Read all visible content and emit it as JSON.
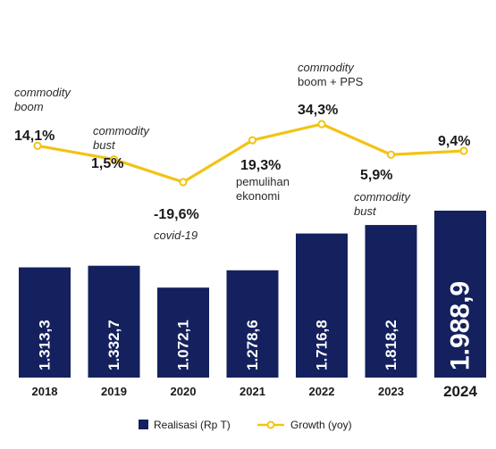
{
  "chart_data": {
    "type": "bar",
    "categories": [
      "2018",
      "2019",
      "2020",
      "2021",
      "2022",
      "2023",
      "2024"
    ],
    "series": [
      {
        "name": "Realisasi (Rp T)",
        "type": "bar",
        "color": "#14215e",
        "values": [
          1313.3,
          1332.7,
          1072.1,
          1278.6,
          1716.8,
          1818.2,
          1988.9
        ],
        "labels": [
          "1.313,3",
          "1.332,7",
          "1.072,1",
          "1.278,6",
          "1.716,8",
          "1.818,2",
          "1.988,9"
        ]
      },
      {
        "name": "Growth (yoy)",
        "type": "line",
        "color": "#f2c314",
        "values": [
          14.1,
          1.5,
          -19.6,
          19.3,
          34.3,
          5.9,
          9.4
        ],
        "labels": [
          "14,1%",
          "1,5%",
          "-19,6%",
          "19,3%",
          "34,3%",
          "5,9%",
          "9,4%"
        ]
      }
    ],
    "annotations": [
      {
        "year": "2018",
        "lines": [
          "commodity",
          "boom"
        ]
      },
      {
        "year": "2019",
        "lines": [
          "commodity",
          "bust"
        ]
      },
      {
        "year": "2020",
        "lines": [
          "covid-19"
        ]
      },
      {
        "year": "2021",
        "lines": [
          "pemulihan",
          "ekonomi"
        ]
      },
      {
        "year": "2022",
        "lines": [
          "commodity",
          "boom + PPS"
        ]
      },
      {
        "year": "2023",
        "lines": [
          "commodity",
          "bust"
        ]
      }
    ],
    "legend": {
      "position": "bottom",
      "items": [
        {
          "label": "Realisasi (Rp T)",
          "symbol": "square",
          "color": "#14215e"
        },
        {
          "label": "Growth (yoy)",
          "symbol": "line-marker",
          "color": "#f2c314"
        }
      ]
    },
    "title": "",
    "xlabel": "",
    "ylabel": ""
  }
}
